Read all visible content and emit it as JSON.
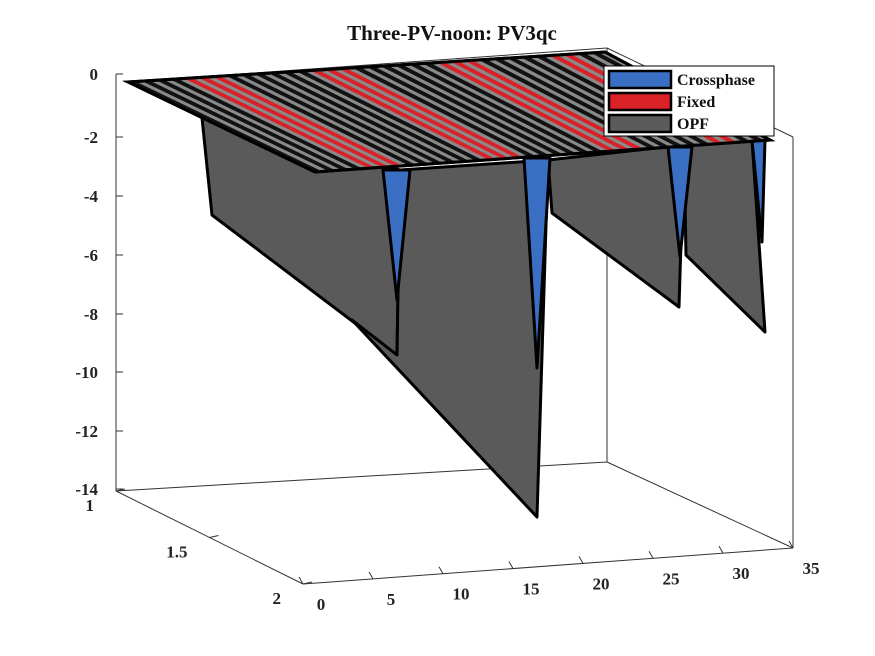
{
  "chart_data": {
    "type": "surface3d",
    "title": "Three-PV-noon: PV3qc",
    "xlabel": "",
    "ylabel": "",
    "zlabel": "",
    "x_ticks": [
      "0",
      "5",
      "10",
      "15",
      "20",
      "25",
      "30",
      "35"
    ],
    "y_ticks": [
      "1",
      "1.5",
      "2"
    ],
    "z_ticks": [
      "0",
      "-2",
      "-4",
      "-6",
      "-8",
      "-10",
      "-12",
      "-14"
    ],
    "xlim": [
      0,
      35
    ],
    "ylim": [
      1,
      2
    ],
    "zlim": [
      -14,
      0
    ],
    "legend_position": "top-right",
    "series": [
      {
        "name": "Crossphase",
        "color": "#3a6fc4",
        "x": [
          4,
          10,
          15,
          25,
          32
        ],
        "y_row": 1,
        "values": [
          -3.2,
          -8,
          -9,
          -6,
          -5.5
        ]
      },
      {
        "name": "Fixed",
        "color": "#d92128",
        "x": [
          0,
          35
        ],
        "y_row": 1.5,
        "values": [
          0,
          0
        ]
      },
      {
        "name": "OPF",
        "color": "#5a5a5a",
        "x": [
          4,
          10,
          15,
          25,
          32
        ],
        "y_row": 2,
        "values": [
          -4.6,
          -9.4,
          -13.9,
          -7.7,
          -8.6
        ]
      }
    ]
  }
}
